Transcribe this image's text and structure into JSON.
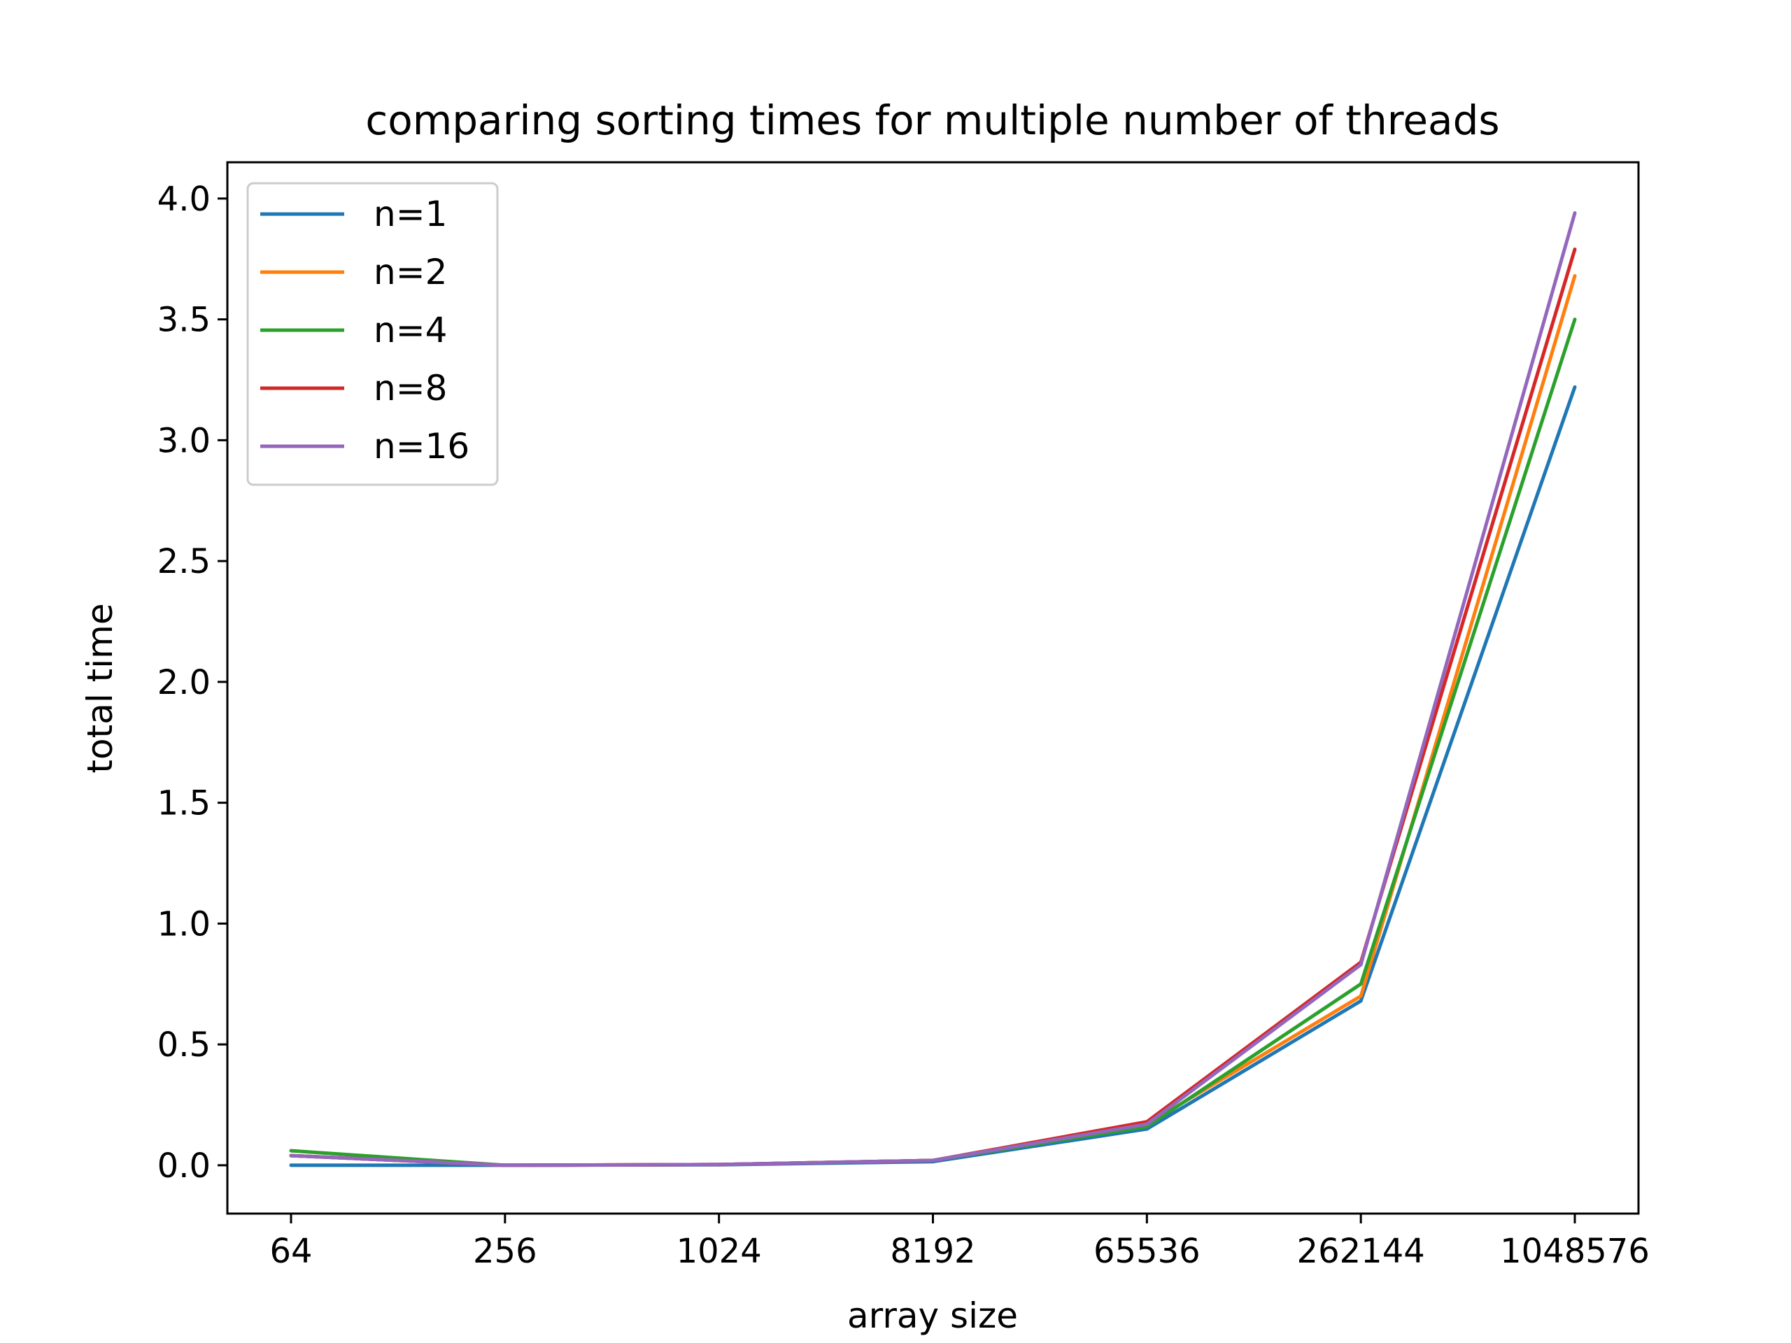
{
  "chart_data": {
    "type": "line",
    "title": "comparing sorting times for multiple number of threads",
    "xlabel": "array size",
    "ylabel": "total time",
    "categories": [
      "64",
      "256",
      "1024",
      "8192",
      "65536",
      "262144",
      "1048576"
    ],
    "ylim": [
      -0.2,
      4.15
    ],
    "yticks": [
      0.0,
      0.5,
      1.0,
      1.5,
      2.0,
      2.5,
      3.0,
      3.5,
      4.0
    ],
    "ytick_labels": [
      "0.0",
      "0.5",
      "1.0",
      "1.5",
      "2.0",
      "2.5",
      "3.0",
      "3.5",
      "4.0"
    ],
    "grid": false,
    "legend_position": "upper-left",
    "series": [
      {
        "name": "n=1",
        "color": "#1f77b4",
        "values": [
          0.0,
          0.0,
          0.002,
          0.015,
          0.15,
          0.68,
          3.22
        ]
      },
      {
        "name": "n=2",
        "color": "#ff7f0e",
        "values": [
          0.04,
          0.0,
          0.003,
          0.02,
          0.17,
          0.7,
          3.68
        ]
      },
      {
        "name": "n=4",
        "color": "#2ca02c",
        "values": [
          0.06,
          0.0,
          0.003,
          0.02,
          0.16,
          0.75,
          3.5
        ]
      },
      {
        "name": "n=8",
        "color": "#d62728",
        "values": [
          0.04,
          0.0,
          0.003,
          0.02,
          0.18,
          0.84,
          3.79
        ]
      },
      {
        "name": "n=16",
        "color": "#9467bd",
        "values": [
          0.04,
          0.0,
          0.003,
          0.02,
          0.17,
          0.83,
          3.94
        ]
      }
    ]
  }
}
